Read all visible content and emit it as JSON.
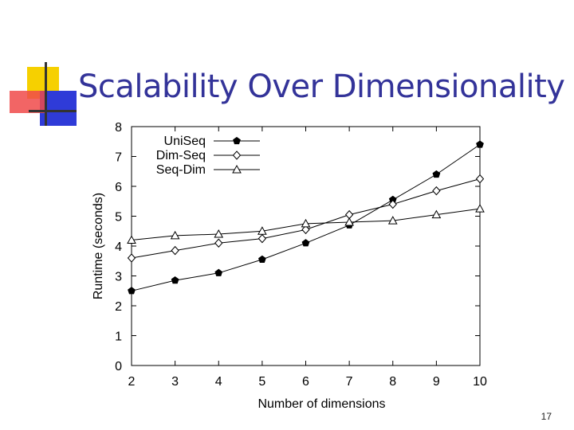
{
  "slide": {
    "title": "Scalability Over Dimensionality",
    "page_number": "17"
  },
  "colors": {
    "title": "#333399",
    "logo_yellow": "#f6d000",
    "logo_red": "#f04a4a",
    "logo_blue": "#2f3bd8"
  },
  "chart_data": {
    "type": "line",
    "title": "",
    "xlabel": "Number of dimensions",
    "ylabel": "Runtime (seconds)",
    "x": [
      2,
      3,
      4,
      5,
      6,
      7,
      8,
      9,
      10
    ],
    "xlim": [
      2,
      10
    ],
    "ylim": [
      0,
      8
    ],
    "xticks": [
      "2",
      "3",
      "4",
      "5",
      "6",
      "7",
      "8",
      "9",
      "10"
    ],
    "yticks": [
      "0",
      "1",
      "2",
      "3",
      "4",
      "5",
      "6",
      "7",
      "8"
    ],
    "grid": false,
    "legend_position": "top-left",
    "series": [
      {
        "name": "UniSeq",
        "marker": "filled-pentagon",
        "values": [
          2.5,
          2.85,
          3.1,
          3.55,
          4.1,
          4.7,
          5.55,
          6.4,
          7.4
        ]
      },
      {
        "name": "Dim-Seq",
        "marker": "open-diamond",
        "values": [
          3.6,
          3.85,
          4.1,
          4.25,
          4.55,
          5.05,
          5.4,
          5.85,
          6.25
        ]
      },
      {
        "name": "Seq-Dim",
        "marker": "open-triangle",
        "values": [
          4.2,
          4.35,
          4.4,
          4.5,
          4.75,
          4.8,
          4.85,
          5.05,
          5.25
        ]
      }
    ]
  }
}
